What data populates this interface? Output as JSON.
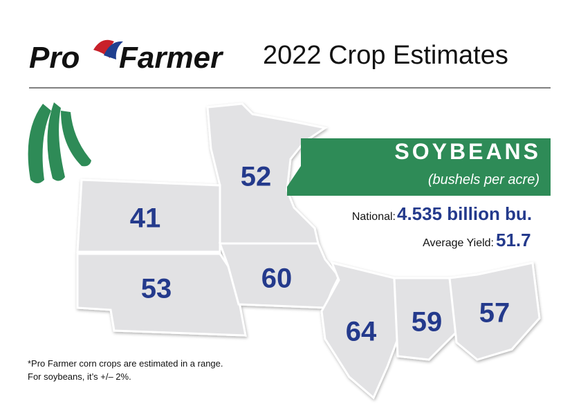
{
  "header": {
    "logo": {
      "left": "Pro",
      "right": "Farmer"
    },
    "title": "2022 Crop Estimates"
  },
  "banner": {
    "title": "SOYBEANS",
    "subtitle": "(bushels per acre)"
  },
  "national": {
    "label": "National:",
    "value": "4.535 billion bu."
  },
  "average": {
    "label": "Average Yield:",
    "value": 51.7
  },
  "state_yields": [
    52,
    41,
    53,
    60,
    64,
    59,
    57
  ],
  "footnote": [
    "*Pro Farmer corn crops are estimated in a range.",
    "For soybeans, it’s +/– 2%."
  ]
}
